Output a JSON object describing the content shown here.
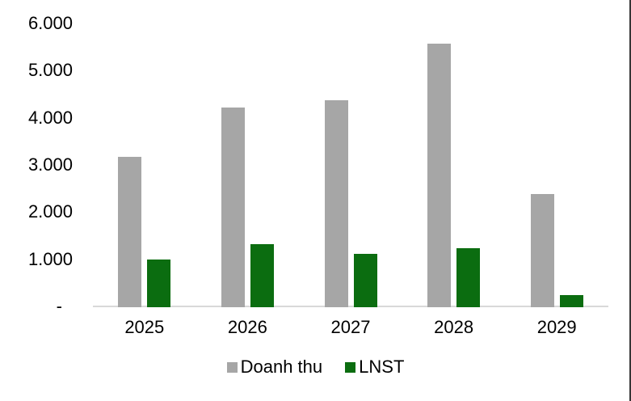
{
  "chart_data": {
    "type": "bar",
    "title": "",
    "xlabel": "",
    "ylabel": "",
    "categories": [
      "2025",
      "2026",
      "2027",
      "2028",
      "2029"
    ],
    "series": [
      {
        "name": "Doanh thu",
        "color": "#A6A6A6",
        "values": [
          3190,
          4230,
          4390,
          5590,
          2400
        ]
      },
      {
        "name": "LNST",
        "color": "#0B6D10",
        "values": [
          1010,
          1340,
          1140,
          1260,
          250
        ]
      }
    ],
    "ylim": [
      0,
      6000
    ],
    "yticks": [
      {
        "value": 6000,
        "label": "6.000"
      },
      {
        "value": 5000,
        "label": "5.000"
      },
      {
        "value": 4000,
        "label": "4.000"
      },
      {
        "value": 3000,
        "label": "3.000"
      },
      {
        "value": 2000,
        "label": "2.000"
      },
      {
        "value": 1000,
        "label": "1.000"
      },
      {
        "value": 0,
        "label": "-"
      }
    ],
    "grid": false,
    "legend_position": "bottom",
    "axis_line_color": "#D9D9D9",
    "text_color": "#000000",
    "background_color": "#FFFFFF"
  }
}
